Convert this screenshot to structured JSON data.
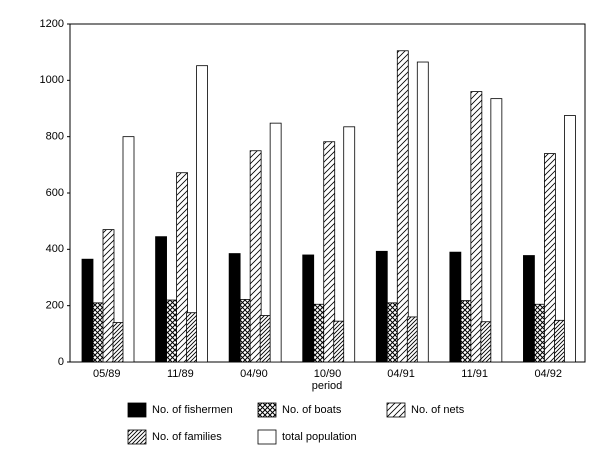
{
  "chart_data": {
    "type": "bar",
    "x_label": "period",
    "categories": [
      "05/89",
      "11/89",
      "04/90",
      "10/90",
      "04/91",
      "11/91",
      "04/92"
    ],
    "series": [
      {
        "name": "No. of fishermen",
        "color": "#000000",
        "pattern": "solid",
        "values": [
          365,
          445,
          385,
          380,
          393,
          390,
          378
        ]
      },
      {
        "name": "No. of boats",
        "color": "#000000",
        "pattern": "crosshatch",
        "values": [
          210,
          220,
          222,
          205,
          210,
          218,
          205
        ]
      },
      {
        "name": "No. of nets",
        "color": "#000000",
        "pattern": "hatch",
        "values": [
          470,
          672,
          750,
          782,
          1105,
          960,
          740
        ]
      },
      {
        "name": "No. of families",
        "color": "#000000",
        "pattern": "hatch-dense",
        "values": [
          140,
          175,
          165,
          145,
          160,
          143,
          148
        ]
      },
      {
        "name": "total population",
        "color": "#000000",
        "pattern": "none",
        "values": [
          800,
          1052,
          848,
          835,
          1065,
          935,
          875
        ]
      }
    ],
    "ylim": [
      0,
      1200
    ],
    "yticks": [
      0,
      200,
      400,
      600,
      800,
      1000,
      1200
    ],
    "grid": false,
    "legend": "bottom"
  }
}
